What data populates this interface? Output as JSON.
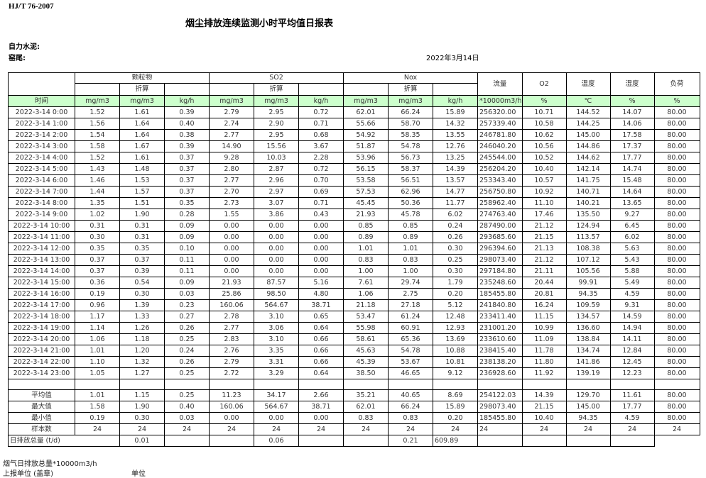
{
  "standard": "HJ/T  76-2007",
  "title": "烟尘排放连续监测小时平均值日报表",
  "company_label": "自力水泥:",
  "kiln_label": "窑尾:",
  "report_date": "2022年3月14日",
  "header": {
    "groups": [
      "颗粒物",
      "SO2",
      "Nox"
    ],
    "converted": "折算",
    "flow": "流量",
    "o2": "O2",
    "temperature": "温度",
    "humidity": "湿度",
    "load": "负荷",
    "units": [
      "时间",
      "mg/m3",
      "mg/m3",
      "kg/h",
      "mg/m3",
      "mg/m3",
      "kg/h",
      "mg/m3",
      "mg/m3",
      "kg/h",
      "*10000m3/h",
      "%",
      "℃",
      "%",
      "%"
    ]
  },
  "rows": [
    [
      "2022-3-14 0:00",
      "1.52",
      "1.61",
      "0.39",
      "2.79",
      "2.95",
      "0.72",
      "62.01",
      "66.24",
      "15.89",
      "256320.00",
      "10.71",
      "144.52",
      "14.07",
      "80.00"
    ],
    [
      "2022-3-14 1:00",
      "1.56",
      "1.64",
      "0.40",
      "2.74",
      "2.90",
      "0.71",
      "55.66",
      "58.70",
      "14.32",
      "257339.40",
      "10.58",
      "144.25",
      "14.06",
      "80.00"
    ],
    [
      "2022-3-14 2:00",
      "1.54",
      "1.64",
      "0.38",
      "2.77",
      "2.95",
      "0.68",
      "54.92",
      "58.35",
      "13.55",
      "246781.80",
      "10.62",
      "145.00",
      "17.58",
      "80.00"
    ],
    [
      "2022-3-14 3:00",
      "1.58",
      "1.67",
      "0.39",
      "14.90",
      "15.56",
      "3.67",
      "51.87",
      "54.78",
      "12.76",
      "246040.20",
      "10.56",
      "144.86",
      "17.37",
      "80.00"
    ],
    [
      "2022-3-14 4:00",
      "1.52",
      "1.61",
      "0.37",
      "9.28",
      "10.03",
      "2.28",
      "53.96",
      "56.73",
      "13.25",
      "245544.00",
      "10.52",
      "144.62",
      "17.77",
      "80.00"
    ],
    [
      "2022-3-14 5:00",
      "1.43",
      "1.48",
      "0.37",
      "2.80",
      "2.87",
      "0.72",
      "56.15",
      "58.37",
      "14.39",
      "256204.20",
      "10.40",
      "142.14",
      "14.74",
      "80.00"
    ],
    [
      "2022-3-14 6:00",
      "1.46",
      "1.53",
      "0.37",
      "2.77",
      "2.96",
      "0.70",
      "53.58",
      "56.51",
      "13.57",
      "253343.40",
      "10.57",
      "141.75",
      "15.48",
      "80.00"
    ],
    [
      "2022-3-14 7:00",
      "1.44",
      "1.57",
      "0.37",
      "2.70",
      "2.97",
      "0.69",
      "57.53",
      "62.96",
      "14.77",
      "256750.80",
      "10.92",
      "140.71",
      "14.64",
      "80.00"
    ],
    [
      "2022-3-14 8:00",
      "1.35",
      "1.51",
      "0.35",
      "2.73",
      "3.07",
      "0.71",
      "45.45",
      "50.36",
      "11.77",
      "258962.40",
      "11.10",
      "140.21",
      "13.65",
      "80.00"
    ],
    [
      "2022-3-14 9:00",
      "1.02",
      "1.90",
      "0.28",
      "1.55",
      "3.86",
      "0.43",
      "21.93",
      "45.78",
      "6.02",
      "274763.40",
      "17.46",
      "135.50",
      "9.27",
      "80.00"
    ],
    [
      "2022-3-14 10:00",
      "0.31",
      "0.31",
      "0.09",
      "0.00",
      "0.00",
      "0.00",
      "0.85",
      "0.85",
      "0.24",
      "287490.00",
      "21.12",
      "124.94",
      "6.45",
      "80.00"
    ],
    [
      "2022-3-14 11:00",
      "0.30",
      "0.31",
      "0.09",
      "0.00",
      "0.00",
      "0.00",
      "0.89",
      "0.89",
      "0.26",
      "293685.60",
      "21.15",
      "113.57",
      "6.02",
      "80.00"
    ],
    [
      "2022-3-14 12:00",
      "0.35",
      "0.35",
      "0.10",
      "0.00",
      "0.00",
      "0.00",
      "1.01",
      "1.01",
      "0.30",
      "296394.60",
      "21.13",
      "108.38",
      "5.63",
      "80.00"
    ],
    [
      "2022-3-14 13:00",
      "0.37",
      "0.37",
      "0.11",
      "0.00",
      "0.00",
      "0.00",
      "0.83",
      "0.83",
      "0.25",
      "298073.40",
      "21.12",
      "107.12",
      "5.43",
      "80.00"
    ],
    [
      "2022-3-14 14:00",
      "0.37",
      "0.39",
      "0.11",
      "0.00",
      "0.00",
      "0.00",
      "1.00",
      "1.00",
      "0.30",
      "297184.80",
      "21.11",
      "105.56",
      "5.88",
      "80.00"
    ],
    [
      "2022-3-14 15:00",
      "0.36",
      "0.54",
      "0.09",
      "21.93",
      "87.57",
      "5.16",
      "7.61",
      "29.74",
      "1.79",
      "235248.60",
      "20.44",
      "99.91",
      "5.49",
      "80.00"
    ],
    [
      "2022-3-14 16:00",
      "0.19",
      "0.30",
      "0.03",
      "25.86",
      "98.50",
      "4.80",
      "1.06",
      "2.75",
      "0.20",
      "185455.80",
      "20.81",
      "94.35",
      "4.59",
      "80.00"
    ],
    [
      "2022-3-14 17:00",
      "0.96",
      "1.39",
      "0.23",
      "160.06",
      "564.67",
      "38.71",
      "21.18",
      "27.18",
      "5.12",
      "241840.80",
      "16.24",
      "109.59",
      "9.31",
      "80.00"
    ],
    [
      "2022-3-14 18:00",
      "1.17",
      "1.33",
      "0.27",
      "2.78",
      "3.10",
      "0.65",
      "53.47",
      "61.24",
      "12.48",
      "233411.40",
      "11.15",
      "134.57",
      "14.59",
      "80.00"
    ],
    [
      "2022-3-14 19:00",
      "1.14",
      "1.26",
      "0.26",
      "2.77",
      "3.06",
      "0.64",
      "55.98",
      "60.91",
      "12.93",
      "231001.20",
      "10.99",
      "136.60",
      "14.94",
      "80.00"
    ],
    [
      "2022-3-14 20:00",
      "1.06",
      "1.18",
      "0.25",
      "2.83",
      "3.10",
      "0.66",
      "58.61",
      "65.36",
      "13.69",
      "233610.60",
      "11.09",
      "138.84",
      "14.11",
      "80.00"
    ],
    [
      "2022-3-14 21:00",
      "1.01",
      "1.20",
      "0.24",
      "2.76",
      "3.35",
      "0.66",
      "45.63",
      "54.78",
      "10.88",
      "238415.40",
      "11.78",
      "134.74",
      "12.84",
      "80.00"
    ],
    [
      "2022-3-14 22:00",
      "1.10",
      "1.32",
      "0.26",
      "2.79",
      "3.31",
      "0.66",
      "45.39",
      "53.67",
      "10.81",
      "238138.20",
      "11.80",
      "141.86",
      "12.45",
      "80.00"
    ],
    [
      "2022-3-14 23:00",
      "1.05",
      "1.27",
      "0.25",
      "2.72",
      "3.29",
      "0.64",
      "38.50",
      "46.65",
      "9.12",
      "236928.60",
      "11.92",
      "139.19",
      "12.23",
      "80.00"
    ]
  ],
  "summary": [
    [
      "平均值",
      "1.01",
      "1.15",
      "0.25",
      "11.23",
      "34.17",
      "2.66",
      "35.21",
      "40.65",
      "8.69",
      "254122.03",
      "14.39",
      "129.70",
      "11.61",
      "80.00"
    ],
    [
      "最大值",
      "1.58",
      "1.90",
      "0.40",
      "160.06",
      "564.67",
      "38.71",
      "62.01",
      "66.24",
      "15.89",
      "298073.40",
      "21.15",
      "145.00",
      "17.77",
      "80.00"
    ],
    [
      "最小值",
      "0.19",
      "0.30",
      "0.03",
      "0.00",
      "0.00",
      "0.00",
      "0.83",
      "0.83",
      "0.20",
      "185455.80",
      "10.40",
      "94.35",
      "4.59",
      "80.00"
    ],
    [
      "样本数",
      "24",
      "24",
      "24",
      "24",
      "24",
      "24",
      "24",
      "24",
      "24",
      "24",
      "24",
      "24",
      "24",
      "24"
    ]
  ],
  "daily_total": {
    "label": "日排放总量 (t/d)",
    "dust_kg": "0.01",
    "so2_kg": "0.06",
    "nox_kg": "0.21",
    "flow": "609.89"
  },
  "footer": {
    "flue_gas_total": "烟气日排放总量*10000m3/h",
    "reporting_unit": "上报单位 (盖章)",
    "unit": "单位"
  },
  "colors": {
    "unit_row_bg": "#ccffcc",
    "border": "#000000"
  }
}
